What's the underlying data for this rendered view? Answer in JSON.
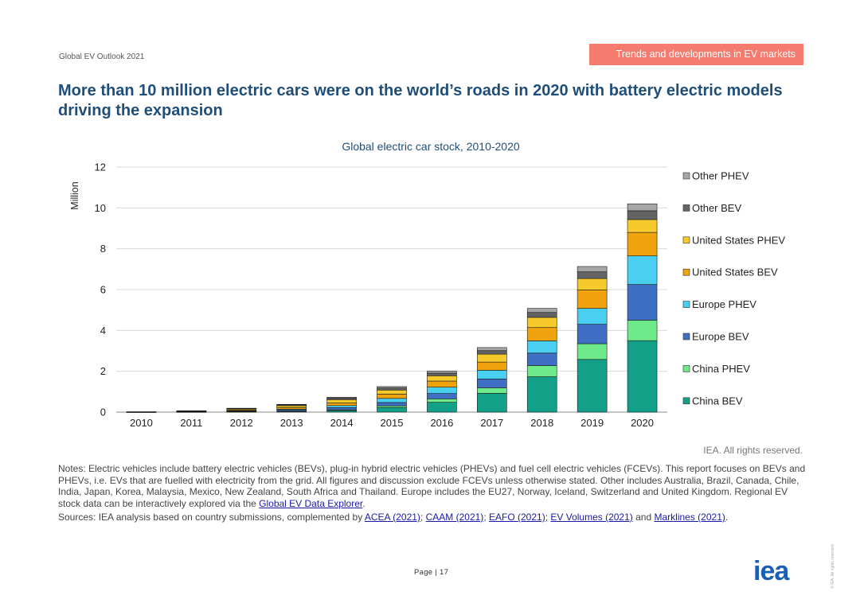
{
  "header": {
    "report_name": "Global EV Outlook 2021",
    "section_badge": "Trends and developments in EV markets",
    "badge_color": "#f47b6e"
  },
  "headline": "More than 10 million electric cars were on the world’s roads in 2020 with battery electric models driving the expansion",
  "chart_data": {
    "type": "bar",
    "stacked": true,
    "title": "Global electric car stock, 2010-2020",
    "xlabel": "",
    "ylabel": "Million",
    "ylim": [
      0,
      12
    ],
    "yticks": [
      0,
      2,
      4,
      6,
      8,
      10,
      12
    ],
    "grid": true,
    "legend_position": "right",
    "categories": [
      "2010",
      "2011",
      "2012",
      "2013",
      "2014",
      "2015",
      "2016",
      "2017",
      "2018",
      "2019",
      "2020"
    ],
    "series": [
      {
        "name": "China BEV",
        "color": "#13a089",
        "values": [
          0.005,
          0.01,
          0.02,
          0.03,
          0.08,
          0.23,
          0.48,
          0.92,
          1.73,
          2.58,
          3.5
        ]
      },
      {
        "name": "China PHEV",
        "color": "#6fea8a",
        "values": [
          0.0,
          0.0,
          0.01,
          0.01,
          0.03,
          0.08,
          0.17,
          0.27,
          0.55,
          0.77,
          1.0
        ]
      },
      {
        "name": "Europe BEV",
        "color": "#3f6fc4",
        "values": [
          0.003,
          0.01,
          0.03,
          0.06,
          0.11,
          0.16,
          0.26,
          0.43,
          0.61,
          0.95,
          1.75
        ]
      },
      {
        "name": "Europe PHEV",
        "color": "#49cff2",
        "values": [
          0.0,
          0.005,
          0.01,
          0.04,
          0.1,
          0.2,
          0.31,
          0.43,
          0.6,
          0.78,
          1.4
        ]
      },
      {
        "name": "United States BEV",
        "color": "#f0a30c",
        "values": [
          0.003,
          0.01,
          0.04,
          0.08,
          0.13,
          0.21,
          0.3,
          0.4,
          0.65,
          0.9,
          1.15
        ]
      },
      {
        "name": "United States PHEV",
        "color": "#f7ca2c",
        "values": [
          0.0,
          0.008,
          0.04,
          0.09,
          0.16,
          0.2,
          0.26,
          0.39,
          0.5,
          0.56,
          0.63
        ]
      },
      {
        "name": "Other BEV",
        "color": "#636363",
        "values": [
          0.006,
          0.02,
          0.03,
          0.05,
          0.08,
          0.1,
          0.13,
          0.17,
          0.24,
          0.33,
          0.43
        ]
      },
      {
        "name": "Other PHEV",
        "color": "#a6a6a6",
        "values": [
          0.0,
          0.005,
          0.01,
          0.02,
          0.04,
          0.07,
          0.1,
          0.15,
          0.2,
          0.26,
          0.34
        ]
      }
    ]
  },
  "rights": "IEA. All rights reserved.",
  "notes": {
    "text": "Notes: Electric vehicles include battery electric vehicles (BEVs), plug-in hybrid electric vehicles (PHEVs) and fuel cell electric vehicles (FCEVs). This report focuses on BEVs and PHEVs, i.e. EVs that are fuelled with electricity from the grid. All figures and discussion exclude FCEVs unless otherwise stated. Other includes Australia, Brazil, Canada, Chile, India, Japan, Korea, Malaysia, Mexico, New Zealand, South Africa and Thailand. Europe includes the EU27, Norway, Iceland, Switzerland and United Kingdom. Regional EV stock data can be interactively explored via the",
    "link": "Global EV Data Explorer",
    "end": "."
  },
  "sources": {
    "prefix": "Sources: IEA analysis based on country submissions, complemented by",
    "link1": "ACEA (2021)",
    "sep1": ";",
    "link2": "CAAM (2021)",
    "sep2": ";",
    "link3": "EAFO (2021)",
    "sep3": ";",
    "link4": "EV Volumes (2021)",
    "and": "and",
    "link5": "Marklines (2021)",
    "end": "."
  },
  "footer": {
    "page_label": "Page | 17",
    "logo_text": "iea",
    "logo_color": "#1a5fb4",
    "side_note": "© IEA. All rights reserved."
  }
}
